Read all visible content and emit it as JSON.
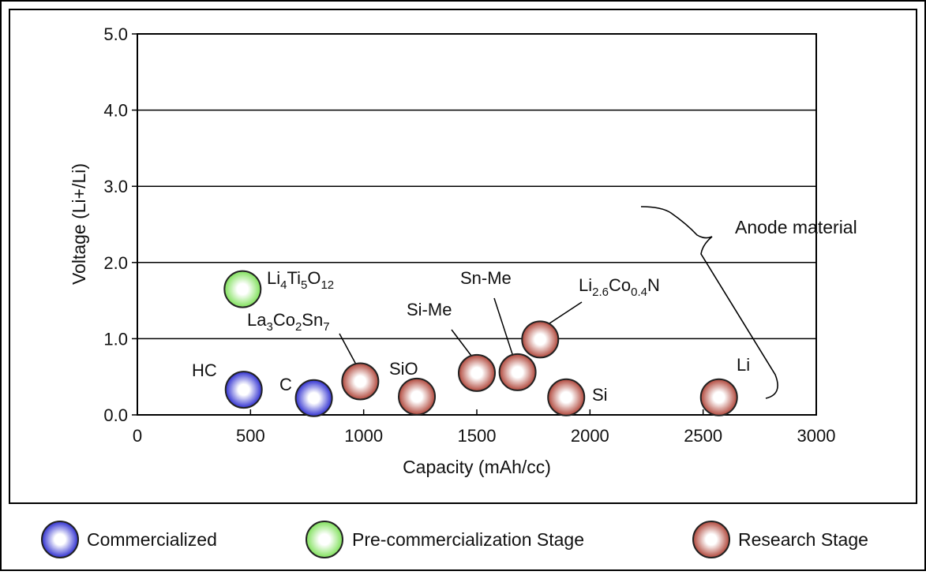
{
  "chart_data": {
    "type": "scatter",
    "xlabel": "Capacity (mAh/cc)",
    "ylabel": "Voltage (Li+/Li)",
    "xlim": [
      0,
      3000
    ],
    "ylim": [
      0,
      5.0
    ],
    "x_ticks": [
      "0",
      "500",
      "1000",
      "1500",
      "2000",
      "2500",
      "3000"
    ],
    "y_ticks": [
      "0.0",
      "1.0",
      "2.0",
      "3.0",
      "4.0",
      "5.0"
    ],
    "grid": "horizontal",
    "annotation": "Anode material",
    "legend_position": "bottom",
    "legend": [
      {
        "label": "Commercialized",
        "color": "#3b3bd6"
      },
      {
        "label": "Pre-commercialization Stage",
        "color": "#7ed957"
      },
      {
        "label": "Research Stage",
        "color": "#b5483c"
      }
    ],
    "points": [
      {
        "label": "HC",
        "x": 470,
        "y": 0.33,
        "stage": 0
      },
      {
        "label": "C",
        "x": 780,
        "y": 0.22,
        "stage": 0
      },
      {
        "label": "Li4Ti5O12",
        "x": 465,
        "y": 1.65,
        "stage": 1
      },
      {
        "label": "La3Co2Sn7",
        "x": 985,
        "y": 0.44,
        "stage": 2
      },
      {
        "label": "SiO",
        "x": 1235,
        "y": 0.24,
        "stage": 2
      },
      {
        "label": "Si-Me",
        "x": 1500,
        "y": 0.55,
        "stage": 2
      },
      {
        "label": "Sn-Me",
        "x": 1680,
        "y": 0.56,
        "stage": 2
      },
      {
        "label": "Li2.6Co0.4N",
        "x": 1780,
        "y": 0.99,
        "stage": 2
      },
      {
        "label": "Si",
        "x": 1895,
        "y": 0.23,
        "stage": 2
      },
      {
        "label": "Li",
        "x": 2570,
        "y": 0.23,
        "stage": 2
      }
    ]
  }
}
